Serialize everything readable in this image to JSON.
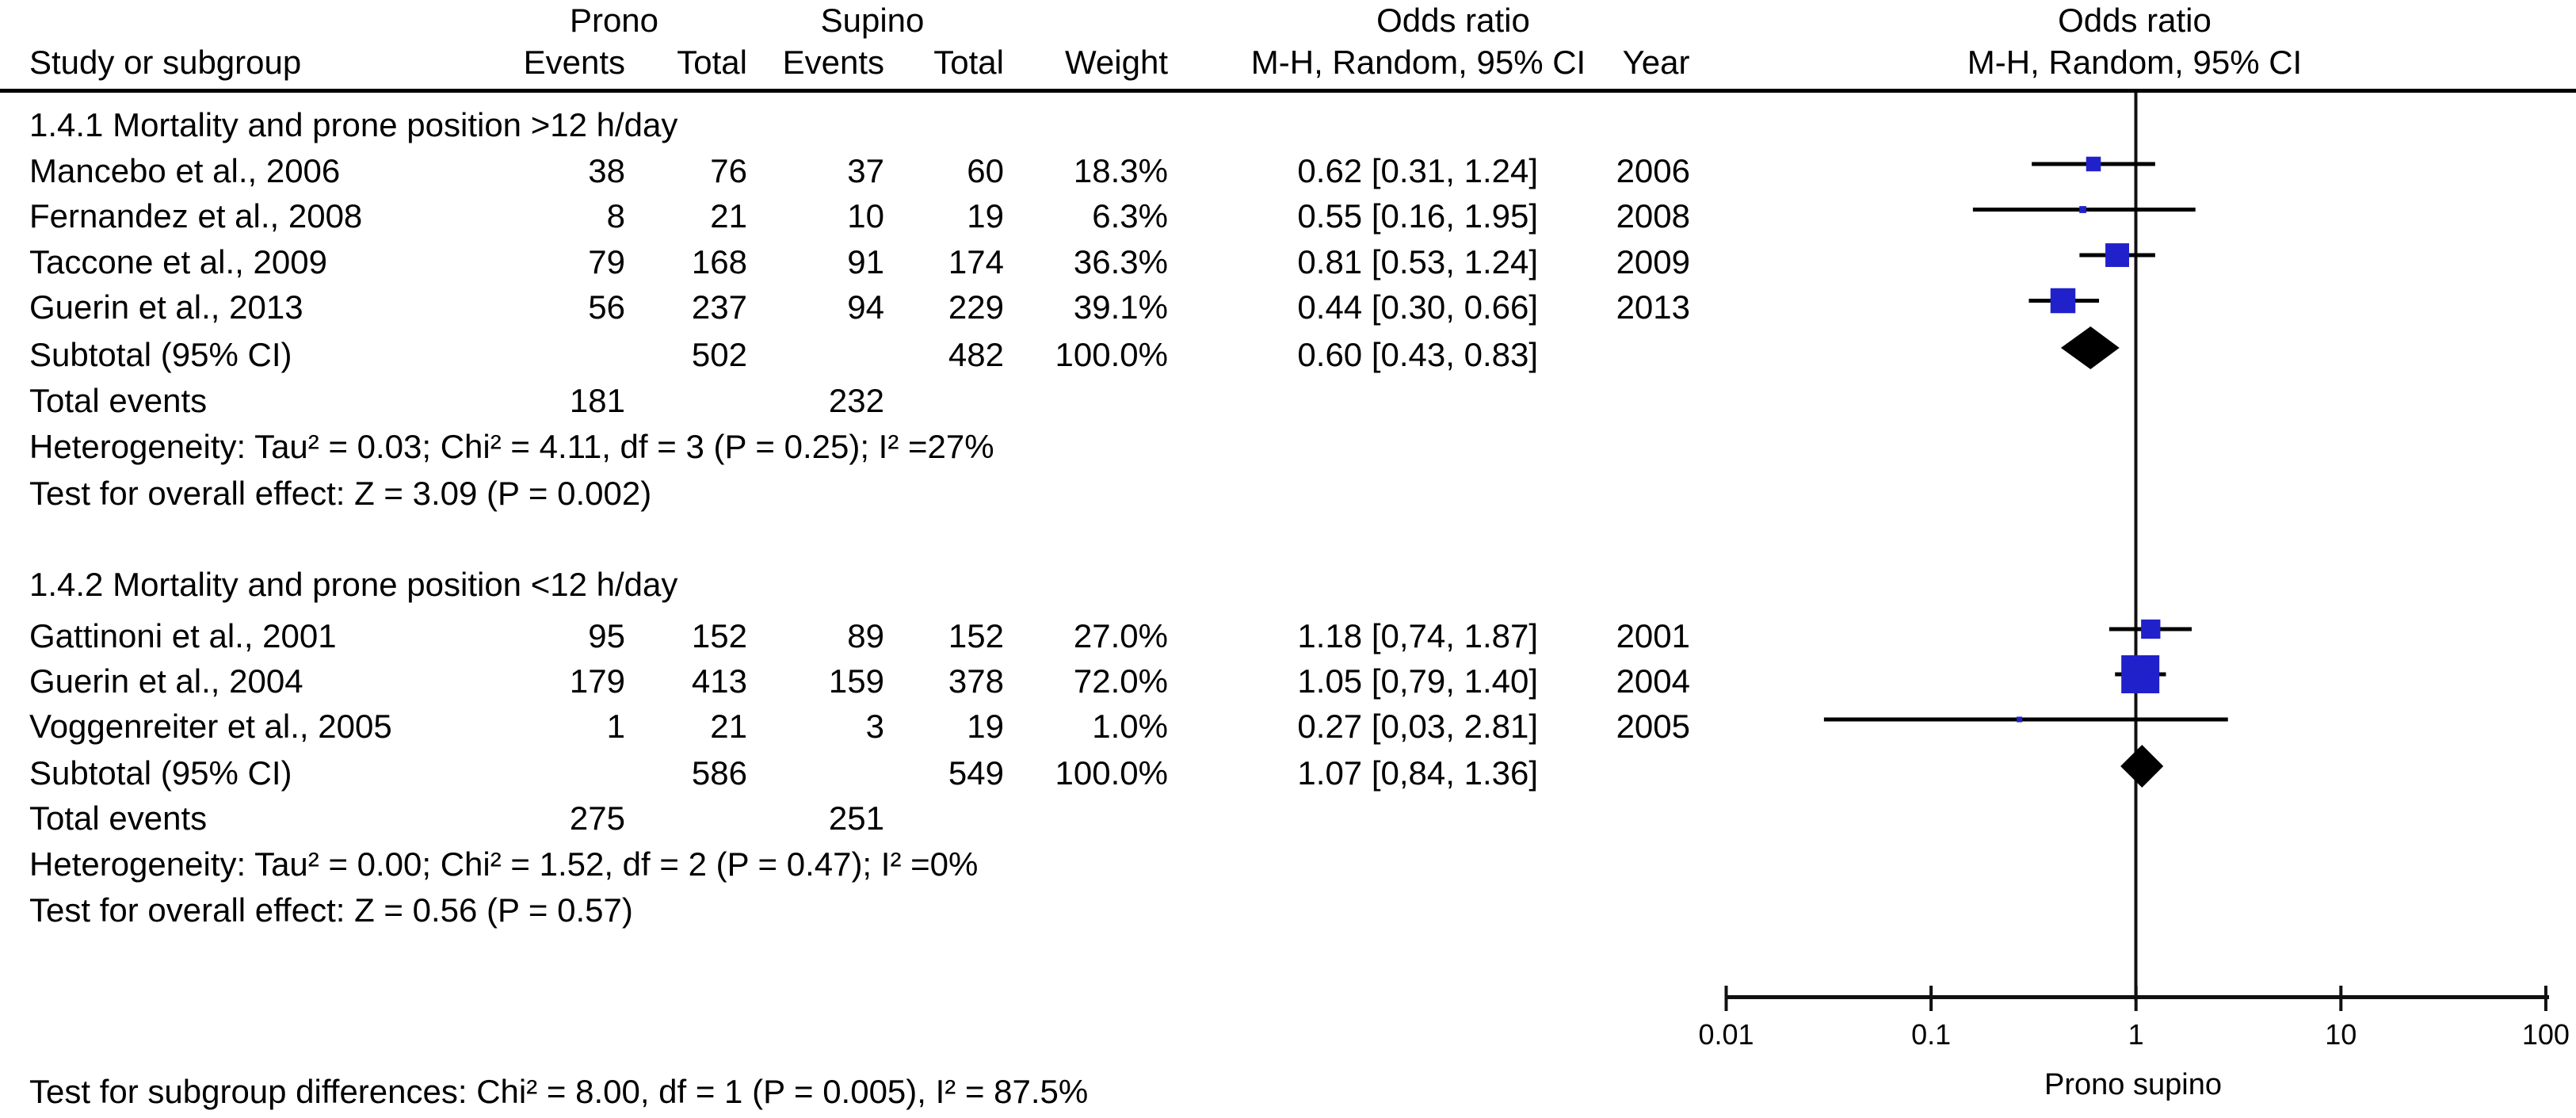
{
  "header": {
    "study_col": "Study or subgroup",
    "prono_group": "Prono",
    "supino_group": "Supino",
    "events_col": "Events",
    "total_col": "Total",
    "events_col_2": "Events",
    "total_col_2": "Total",
    "weight_col": "Weight",
    "odds_ratio_left": "Odds ratio",
    "mh_random_left": "M-H, Random,  95% CI",
    "year_col": "Year",
    "odds_ratio_right": "Odds ratio",
    "mh_random_right": "M-H, Random, 95% CI"
  },
  "footer": {
    "subgroup_diff": "Test for subgroup differences: Chi² = 8.00, df = 1 (P = 0.005), I² = 87.5%"
  },
  "chart_data": {
    "type": "scatter",
    "variant": "forest-plot",
    "x_scale": "log",
    "x_ticks": [
      0.01,
      0.1,
      1,
      10,
      100
    ],
    "tick_labels": [
      "0.01",
      "0.1",
      "1",
      "10",
      "100"
    ],
    "x_axis_caption": "Prono supino",
    "null_line": 1,
    "marker_color": "#2121CB",
    "diamond_color": "#000000",
    "sections": [
      {
        "title": "1.4.1 Mortality and prone position >12 h/day",
        "studies": [
          {
            "label": "Mancebo et al., 2006",
            "p_events": "38",
            "p_total": "76",
            "s_events": "37",
            "s_total": "60",
            "weight": "18.3%",
            "or_ci": "0.62 [0.31, 1.24]",
            "year": "2006",
            "or": 0.62,
            "lo": 0.31,
            "hi": 1.24,
            "weight_val": 18.3
          },
          {
            "label": "Fernandez et al., 2008",
            "p_events": "8",
            "p_total": "21",
            "s_events": "10",
            "s_total": "19",
            "weight": "6.3%",
            "or_ci": "0.55 [0.16, 1.95]",
            "year": "2008",
            "or": 0.55,
            "lo": 0.16,
            "hi": 1.95,
            "weight_val": 6.3
          },
          {
            "label": "Taccone et al., 2009",
            "p_events": "79",
            "p_total": "168",
            "s_events": "91",
            "s_total": "174",
            "weight": "36.3%",
            "or_ci": "0.81 [0.53, 1.24]",
            "year": "2009",
            "or": 0.81,
            "lo": 0.53,
            "hi": 1.24,
            "weight_val": 36.3
          },
          {
            "label": "Guerin et al., 2013",
            "p_events": "56",
            "p_total": "237",
            "s_events": "94",
            "s_total": "229",
            "weight": "39.1%",
            "or_ci": "0.44 [0.30, 0.66]",
            "year": "2013",
            "or": 0.44,
            "lo": 0.3,
            "hi": 0.66,
            "weight_val": 39.1
          }
        ],
        "subtotal": {
          "label": "Subtotal (95% CI)",
          "p_total": "502",
          "s_total": "482",
          "weight": "100.0%",
          "or_ci": "0.60 [0.43, 0.83]",
          "or": 0.6,
          "lo": 0.43,
          "hi": 0.83
        },
        "total_events": {
          "label": "Total events",
          "prono": "181",
          "supino": "232"
        },
        "heterogeneity": "Heterogeneity: Tau² = 0.03; Chi² = 4.11, df = 3 (P = 0.25); I² =27%",
        "overall_effect": "Test for overall effect: Z = 3.09 (P = 0.002)"
      },
      {
        "title": "1.4.2 Mortality and prone position <12 h/day",
        "studies": [
          {
            "label": "Gattinoni et al., 2001",
            "p_events": "95",
            "p_total": "152",
            "s_events": "89",
            "s_total": "152",
            "weight": "27.0%",
            "or_ci": "1.18 [0,74, 1.87]",
            "year": "2001",
            "or": 1.18,
            "lo": 0.74,
            "hi": 1.87,
            "weight_val": 27.0
          },
          {
            "label": "Guerin et al., 2004",
            "p_events": "179",
            "p_total": "413",
            "s_events": "159",
            "s_total": "378",
            "weight": "72.0%",
            "or_ci": "1.05 [0,79, 1.40]",
            "year": "2004",
            "or": 1.05,
            "lo": 0.79,
            "hi": 1.4,
            "weight_val": 72.0
          },
          {
            "label": "Voggenreiter et al., 2005",
            "p_events": "1",
            "p_total": "21",
            "s_events": "3",
            "s_total": "19",
            "weight": "1.0%",
            "or_ci": "0.27 [0,03, 2.81]",
            "year": "2005",
            "or": 0.27,
            "lo": 0.03,
            "hi": 2.81,
            "weight_val": 1.0
          }
        ],
        "subtotal": {
          "label": "Subtotal (95% CI)",
          "p_total": "586",
          "s_total": "549",
          "weight": "100.0%",
          "or_ci": "1.07 [0,84, 1.36]",
          "or": 1.07,
          "lo": 0.84,
          "hi": 1.36
        },
        "total_events": {
          "label": "Total events",
          "prono": "275",
          "supino": "251"
        },
        "heterogeneity": "Heterogeneity: Tau² = 0.00; Chi² = 1.52, df = 2 (P = 0.47); I² =0%",
        "overall_effect": "Test for overall effect: Z = 0.56 (P = 0.57)"
      }
    ]
  }
}
